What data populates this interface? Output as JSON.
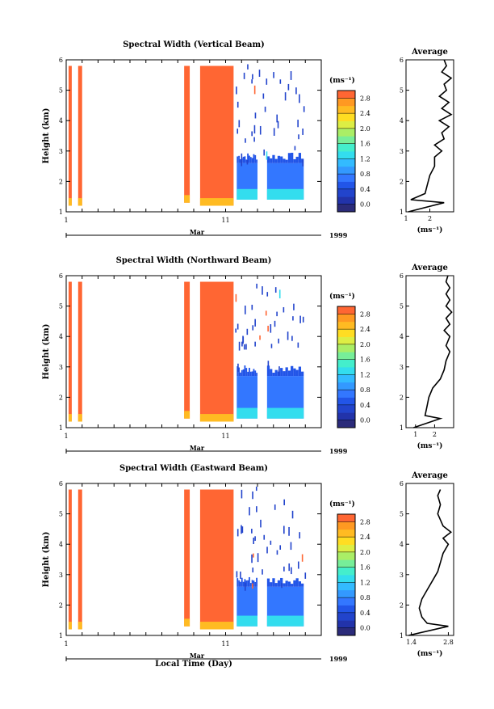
{
  "chart_data": [
    {
      "type": "heatmap",
      "title": "Spectral Width (Vertical Beam)",
      "ylabel": "Height (km)",
      "ylim": [
        1,
        6
      ],
      "yticks": [
        "1",
        "2",
        "3",
        "4",
        "5",
        "6"
      ],
      "xlim": [
        1,
        17
      ],
      "xticks": [
        "1",
        "11"
      ],
      "month_label": "Mar",
      "year_label": "1999",
      "colorbar": {
        "unit": "(ms⁻¹)",
        "range": [
          -0.2,
          3.0
        ],
        "ticks": [
          "0.0",
          "0.4",
          "0.8",
          "1.2",
          "1.6",
          "2.0",
          "2.4",
          "2.8"
        ],
        "colors": [
          "#2b2b7a",
          "#2233aa",
          "#2244cc",
          "#2255e8",
          "#3377ff",
          "#3399ff",
          "#33bbff",
          "#33ddee",
          "#44eecc",
          "#77ee99",
          "#aaee66",
          "#ddee44",
          "#ffdd22",
          "#ffbb22",
          "#ff9922",
          "#ff6633"
        ]
      },
      "blocks": [
        {
          "x0": 1.15,
          "x1": 1.35,
          "h0": 1.2,
          "h1": 5.8,
          "v": 3.0
        },
        {
          "x0": 1.75,
          "x1": 2.0,
          "h0": 1.2,
          "h1": 5.8,
          "v": 3.0
        },
        {
          "x0": 8.4,
          "x1": 8.75,
          "h0": 1.3,
          "h1": 5.8,
          "v": 3.0
        },
        {
          "x0": 9.4,
          "x1": 11.5,
          "h0": 1.2,
          "h1": 5.8,
          "v": 3.0
        },
        {
          "x0": 11.7,
          "x1": 13.0,
          "h0": 1.4,
          "h1": 2.6,
          "v": 0.6
        },
        {
          "x0": 13.6,
          "x1": 15.9,
          "h0": 1.4,
          "h1": 2.6,
          "v": 0.7
        }
      ],
      "average_panel": {
        "title": "Average",
        "xticks": [
          "1",
          "2"
        ],
        "xlim": [
          1,
          3
        ],
        "xunit": "(ms⁻¹)",
        "ylim": [
          1,
          6
        ],
        "yticks": [
          "1",
          "2",
          "3",
          "4",
          "5",
          "6"
        ],
        "profile": [
          [
            1.1,
            1.0
          ],
          [
            2.6,
            1.3
          ],
          [
            1.2,
            1.4
          ],
          [
            1.8,
            1.6
          ],
          [
            1.9,
            1.9
          ],
          [
            2.0,
            2.2
          ],
          [
            2.2,
            2.5
          ],
          [
            2.2,
            2.8
          ],
          [
            2.5,
            3.0
          ],
          [
            2.2,
            3.2
          ],
          [
            2.6,
            3.4
          ],
          [
            2.5,
            3.6
          ],
          [
            2.8,
            3.8
          ],
          [
            2.4,
            4.0
          ],
          [
            2.9,
            4.2
          ],
          [
            2.5,
            4.4
          ],
          [
            2.8,
            4.6
          ],
          [
            2.4,
            4.8
          ],
          [
            2.7,
            5.0
          ],
          [
            2.6,
            5.2
          ],
          [
            2.9,
            5.4
          ],
          [
            2.5,
            5.6
          ],
          [
            2.7,
            5.8
          ],
          [
            2.6,
            6.0
          ]
        ]
      }
    },
    {
      "type": "heatmap",
      "title": "Spectral Width (Northward Beam)",
      "ylabel": "Height (km)",
      "ylim": [
        1,
        6
      ],
      "yticks": [
        "1",
        "2",
        "3",
        "4",
        "5",
        "6"
      ],
      "xlim": [
        1,
        17
      ],
      "xticks": [
        "1",
        "11"
      ],
      "month_label": "Mar",
      "year_label": "1999",
      "colorbar": {
        "unit": "(ms⁻¹)",
        "range": [
          -0.2,
          3.0
        ],
        "ticks": [
          "0.0",
          "0.4",
          "0.8",
          "1.2",
          "1.6",
          "2.0",
          "2.4",
          "2.8"
        ],
        "colors": [
          "#2b2b7a",
          "#2233aa",
          "#2244cc",
          "#2255e8",
          "#3377ff",
          "#3399ff",
          "#33bbff",
          "#33ddee",
          "#44eecc",
          "#77ee99",
          "#aaee66",
          "#ddee44",
          "#ffdd22",
          "#ffbb22",
          "#ff9922",
          "#ff6633"
        ]
      },
      "blocks": [
        {
          "x0": 1.15,
          "x1": 1.35,
          "h0": 1.2,
          "h1": 5.8,
          "v": 3.0
        },
        {
          "x0": 1.75,
          "x1": 2.0,
          "h0": 1.2,
          "h1": 5.8,
          "v": 3.0
        },
        {
          "x0": 8.4,
          "x1": 8.75,
          "h0": 1.3,
          "h1": 5.8,
          "v": 3.0
        },
        {
          "x0": 9.4,
          "x1": 11.5,
          "h0": 1.2,
          "h1": 5.8,
          "v": 3.0
        },
        {
          "x0": 11.7,
          "x1": 13.0,
          "h0": 1.3,
          "h1": 2.7,
          "v": 0.6
        },
        {
          "x0": 13.6,
          "x1": 15.9,
          "h0": 1.3,
          "h1": 2.7,
          "v": 0.7
        }
      ],
      "average_panel": {
        "title": "Average",
        "xticks": [
          "1",
          "2"
        ],
        "xlim": [
          0.5,
          3
        ],
        "xunit": "(ms⁻¹)",
        "ylim": [
          1,
          6
        ],
        "yticks": [
          "1",
          "2",
          "3",
          "4",
          "5",
          "6"
        ],
        "profile": [
          [
            0.9,
            1.0
          ],
          [
            2.3,
            1.3
          ],
          [
            1.5,
            1.4
          ],
          [
            1.6,
            1.7
          ],
          [
            1.7,
            2.0
          ],
          [
            1.9,
            2.3
          ],
          [
            2.3,
            2.6
          ],
          [
            2.5,
            2.9
          ],
          [
            2.6,
            3.2
          ],
          [
            2.8,
            3.5
          ],
          [
            2.6,
            3.7
          ],
          [
            2.8,
            4.0
          ],
          [
            2.5,
            4.2
          ],
          [
            2.8,
            4.4
          ],
          [
            2.6,
            4.6
          ],
          [
            2.9,
            4.8
          ],
          [
            2.6,
            5.0
          ],
          [
            2.8,
            5.2
          ],
          [
            2.6,
            5.4
          ],
          [
            2.8,
            5.6
          ],
          [
            2.6,
            5.8
          ],
          [
            2.7,
            6.0
          ]
        ]
      }
    },
    {
      "type": "heatmap",
      "title": "Spectral Width (Eastward Beam)",
      "ylabel": "Height (km)",
      "ylim": [
        1,
        6
      ],
      "yticks": [
        "1",
        "2",
        "3",
        "4",
        "5",
        "6"
      ],
      "xlim": [
        1,
        17
      ],
      "xticks": [
        "1",
        "11"
      ],
      "month_label": "Mar",
      "year_label": "1999",
      "colorbar": {
        "unit": "(ms⁻¹)",
        "range": [
          -0.2,
          3.0
        ],
        "ticks": [
          "0.0",
          "0.4",
          "0.8",
          "1.2",
          "1.6",
          "2.0",
          "2.4",
          "2.8"
        ],
        "colors": [
          "#2b2b7a",
          "#2233aa",
          "#2244cc",
          "#2255e8",
          "#3377ff",
          "#3399ff",
          "#33bbff",
          "#33ddee",
          "#44eecc",
          "#77ee99",
          "#aaee66",
          "#ddee44",
          "#ffdd22",
          "#ffbb22",
          "#ff9922",
          "#ff6633"
        ]
      },
      "blocks": [
        {
          "x0": 1.15,
          "x1": 1.35,
          "h0": 1.2,
          "h1": 5.8,
          "v": 3.0
        },
        {
          "x0": 1.75,
          "x1": 2.0,
          "h0": 1.2,
          "h1": 5.8,
          "v": 3.0
        },
        {
          "x0": 8.4,
          "x1": 8.75,
          "h0": 1.3,
          "h1": 5.8,
          "v": 3.0
        },
        {
          "x0": 9.4,
          "x1": 11.5,
          "h0": 1.2,
          "h1": 5.8,
          "v": 3.0
        },
        {
          "x0": 11.7,
          "x1": 13.0,
          "h0": 1.3,
          "h1": 2.6,
          "v": 0.6
        },
        {
          "x0": 13.6,
          "x1": 15.9,
          "h0": 1.3,
          "h1": 2.6,
          "v": 0.7
        }
      ],
      "average_panel": {
        "title": "Average",
        "xticks": [
          "1.4",
          "2.8"
        ],
        "xlim": [
          1.2,
          3.0
        ],
        "xunit": "(ms⁻¹)",
        "ylim": [
          1,
          6
        ],
        "yticks": [
          "1",
          "2",
          "3",
          "4",
          "5",
          "6"
        ],
        "profile": [
          [
            1.3,
            1.0
          ],
          [
            2.8,
            1.3
          ],
          [
            2.0,
            1.4
          ],
          [
            1.8,
            1.6
          ],
          [
            1.7,
            1.9
          ],
          [
            1.8,
            2.2
          ],
          [
            2.0,
            2.5
          ],
          [
            2.2,
            2.8
          ],
          [
            2.4,
            3.1
          ],
          [
            2.5,
            3.4
          ],
          [
            2.6,
            3.7
          ],
          [
            2.8,
            4.0
          ],
          [
            2.6,
            4.2
          ],
          [
            2.9,
            4.4
          ],
          [
            2.6,
            4.6
          ],
          [
            2.5,
            4.8
          ],
          [
            2.4,
            5.0
          ],
          [
            2.5,
            5.3
          ],
          [
            2.4,
            5.6
          ],
          [
            2.5,
            5.8
          ]
        ]
      }
    }
  ],
  "xlabel": "Local Time (Day)"
}
